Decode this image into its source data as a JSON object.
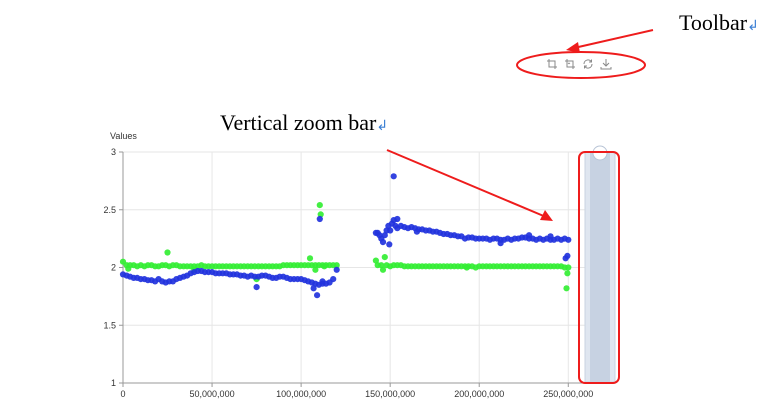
{
  "annotations": {
    "toolbar_label": "Toolbar",
    "zoom_bar_label": "Vertical zoom bar",
    "return_mark": "↲",
    "arrow_color": "#ee1c1c"
  },
  "toolbar": {
    "icons": [
      "zoom-icon",
      "zoom-reset-icon",
      "restore-icon",
      "download-icon"
    ],
    "icon_color": "#888888"
  },
  "chart_data": {
    "type": "scatter",
    "title": "",
    "xlabel": "",
    "ylabel": "Values",
    "xlim": [
      0,
      265000000
    ],
    "ylim": [
      1,
      3
    ],
    "x_ticks": [
      0,
      50000000,
      100000000,
      150000000,
      200000000,
      250000000
    ],
    "x_tick_labels": [
      "0",
      "50,000,000",
      "100,000,000",
      "150,000,000",
      "200,000,000",
      "250,000,000"
    ],
    "y_ticks": [
      1,
      1.5,
      2,
      2.5,
      3
    ],
    "y_tick_labels": [
      "1",
      "1.5",
      "2",
      "2.5",
      "3"
    ],
    "grid": true,
    "series": [
      {
        "color": "#2233dd",
        "points": [
          [
            0,
            1.94
          ],
          [
            2000000,
            1.93
          ],
          [
            4000000,
            1.92
          ],
          [
            6000000,
            1.91
          ],
          [
            8000000,
            1.91
          ],
          [
            10000000,
            1.9
          ],
          [
            12000000,
            1.9
          ],
          [
            14000000,
            1.89
          ],
          [
            16000000,
            1.89
          ],
          [
            18000000,
            1.88
          ],
          [
            20000000,
            1.9
          ],
          [
            22000000,
            1.88
          ],
          [
            24000000,
            1.87
          ],
          [
            26000000,
            1.88
          ],
          [
            28000000,
            1.88
          ],
          [
            30000000,
            1.9
          ],
          [
            32000000,
            1.91
          ],
          [
            34000000,
            1.92
          ],
          [
            36000000,
            1.93
          ],
          [
            38000000,
            1.95
          ],
          [
            40000000,
            1.96
          ],
          [
            42000000,
            1.97
          ],
          [
            44000000,
            1.97
          ],
          [
            46000000,
            1.96
          ],
          [
            48000000,
            1.96
          ],
          [
            50000000,
            1.96
          ],
          [
            52000000,
            1.95
          ],
          [
            54000000,
            1.95
          ],
          [
            56000000,
            1.95
          ],
          [
            58000000,
            1.95
          ],
          [
            60000000,
            1.94
          ],
          [
            62000000,
            1.94
          ],
          [
            64000000,
            1.94
          ],
          [
            66000000,
            1.93
          ],
          [
            68000000,
            1.93
          ],
          [
            70000000,
            1.92
          ],
          [
            72000000,
            1.93
          ],
          [
            74000000,
            1.92
          ],
          [
            76000000,
            1.92
          ],
          [
            78000000,
            1.93
          ],
          [
            80000000,
            1.93
          ],
          [
            82000000,
            1.92
          ],
          [
            84000000,
            1.91
          ],
          [
            86000000,
            1.91
          ],
          [
            88000000,
            1.92
          ],
          [
            90000000,
            1.92
          ],
          [
            92000000,
            1.91
          ],
          [
            94000000,
            1.9
          ],
          [
            96000000,
            1.9
          ],
          [
            98000000,
            1.9
          ],
          [
            100000000,
            1.9
          ],
          [
            102000000,
            1.89
          ],
          [
            104000000,
            1.88
          ],
          [
            106000000,
            1.87
          ],
          [
            108000000,
            1.86
          ],
          [
            110000000,
            1.85
          ],
          [
            112000000,
            1.86
          ],
          [
            114000000,
            1.86
          ],
          [
            116000000,
            1.87
          ],
          [
            118000000,
            1.9
          ],
          [
            120000000,
            1.98
          ],
          [
            75000000,
            1.83
          ],
          [
            107000000,
            1.82
          ],
          [
            109000000,
            1.76
          ],
          [
            110500000,
            2.42
          ],
          [
            112000000,
            1.88
          ],
          [
            142000000,
            2.3
          ],
          [
            143000000,
            2.3
          ],
          [
            144000000,
            2.28
          ],
          [
            145000000,
            2.25
          ],
          [
            146000000,
            2.22
          ],
          [
            147000000,
            2.28
          ],
          [
            148000000,
            2.32
          ],
          [
            149000000,
            2.36
          ],
          [
            150000000,
            2.32
          ],
          [
            151000000,
            2.38
          ],
          [
            152000000,
            2.41
          ],
          [
            153000000,
            2.36
          ],
          [
            154000000,
            2.34
          ],
          [
            156000000,
            2.36
          ],
          [
            158000000,
            2.35
          ],
          [
            160000000,
            2.34
          ],
          [
            162000000,
            2.35
          ],
          [
            164000000,
            2.34
          ],
          [
            166000000,
            2.33
          ],
          [
            168000000,
            2.33
          ],
          [
            170000000,
            2.32
          ],
          [
            172000000,
            2.32
          ],
          [
            174000000,
            2.31
          ],
          [
            176000000,
            2.31
          ],
          [
            178000000,
            2.3
          ],
          [
            180000000,
            2.29
          ],
          [
            182000000,
            2.29
          ],
          [
            184000000,
            2.28
          ],
          [
            186000000,
            2.28
          ],
          [
            188000000,
            2.27
          ],
          [
            190000000,
            2.27
          ],
          [
            192000000,
            2.25
          ],
          [
            194000000,
            2.26
          ],
          [
            196000000,
            2.26
          ],
          [
            198000000,
            2.25
          ],
          [
            200000000,
            2.25
          ],
          [
            202000000,
            2.25
          ],
          [
            204000000,
            2.25
          ],
          [
            206000000,
            2.24
          ],
          [
            208000000,
            2.25
          ],
          [
            210000000,
            2.25
          ],
          [
            212000000,
            2.24
          ],
          [
            214000000,
            2.24
          ],
          [
            216000000,
            2.25
          ],
          [
            218000000,
            2.24
          ],
          [
            220000000,
            2.25
          ],
          [
            222000000,
            2.25
          ],
          [
            224000000,
            2.26
          ],
          [
            226000000,
            2.26
          ],
          [
            228000000,
            2.25
          ],
          [
            230000000,
            2.25
          ],
          [
            232000000,
            2.24
          ],
          [
            234000000,
            2.25
          ],
          [
            236000000,
            2.24
          ],
          [
            238000000,
            2.25
          ],
          [
            240000000,
            2.24
          ],
          [
            242000000,
            2.24
          ],
          [
            244000000,
            2.25
          ],
          [
            246000000,
            2.24
          ],
          [
            248000000,
            2.25
          ],
          [
            250000000,
            2.24
          ],
          [
            152000000,
            2.79
          ],
          [
            149500000,
            2.2
          ],
          [
            154000000,
            2.42
          ],
          [
            212000000,
            2.21
          ],
          [
            228000000,
            2.28
          ],
          [
            240000000,
            2.27
          ],
          [
            248500000,
            2.08
          ],
          [
            249500000,
            2.1
          ],
          [
            165000000,
            2.31
          ]
        ]
      },
      {
        "color": "#33ee33",
        "points": [
          [
            0,
            2.05
          ],
          [
            2000000,
            2.02
          ],
          [
            4000000,
            2.02
          ],
          [
            6000000,
            2.02
          ],
          [
            8000000,
            2.01
          ],
          [
            10000000,
            2.02
          ],
          [
            12000000,
            2.01
          ],
          [
            14000000,
            2.02
          ],
          [
            16000000,
            2.02
          ],
          [
            18000000,
            2.01
          ],
          [
            20000000,
            2.01
          ],
          [
            22000000,
            2.02
          ],
          [
            24000000,
            2.02
          ],
          [
            26000000,
            2.01
          ],
          [
            28000000,
            2.02
          ],
          [
            30000000,
            2.02
          ],
          [
            32000000,
            2.01
          ],
          [
            34000000,
            2.01
          ],
          [
            36000000,
            2.01
          ],
          [
            38000000,
            2.01
          ],
          [
            40000000,
            2.01
          ],
          [
            42000000,
            2.01
          ],
          [
            44000000,
            2.02
          ],
          [
            46000000,
            2.01
          ],
          [
            48000000,
            2.01
          ],
          [
            50000000,
            2.01
          ],
          [
            52000000,
            2.01
          ],
          [
            54000000,
            2.01
          ],
          [
            56000000,
            2.01
          ],
          [
            58000000,
            2.01
          ],
          [
            60000000,
            2.01
          ],
          [
            62000000,
            2.01
          ],
          [
            64000000,
            2.01
          ],
          [
            66000000,
            2.01
          ],
          [
            68000000,
            2.01
          ],
          [
            70000000,
            2.01
          ],
          [
            72000000,
            2.01
          ],
          [
            74000000,
            2.01
          ],
          [
            76000000,
            2.01
          ],
          [
            78000000,
            2.01
          ],
          [
            80000000,
            2.01
          ],
          [
            82000000,
            2.01
          ],
          [
            84000000,
            2.01
          ],
          [
            86000000,
            2.01
          ],
          [
            88000000,
            2.01
          ],
          [
            90000000,
            2.02
          ],
          [
            92000000,
            2.02
          ],
          [
            94000000,
            2.02
          ],
          [
            96000000,
            2.02
          ],
          [
            98000000,
            2.02
          ],
          [
            100000000,
            2.02
          ],
          [
            102000000,
            2.02
          ],
          [
            104000000,
            2.02
          ],
          [
            106000000,
            2.02
          ],
          [
            108000000,
            2.02
          ],
          [
            110000000,
            2.02
          ],
          [
            112000000,
            2.02
          ],
          [
            114000000,
            2.02
          ],
          [
            116000000,
            2.02
          ],
          [
            118000000,
            2.02
          ],
          [
            120000000,
            2.02
          ],
          [
            25000000,
            2.13
          ],
          [
            40000000,
            1.98
          ],
          [
            75000000,
            1.9
          ],
          [
            105000000,
            2.08
          ],
          [
            110500000,
            2.54
          ],
          [
            111000000,
            2.46
          ],
          [
            3000000,
            1.99
          ],
          [
            108000000,
            1.98
          ],
          [
            113000000,
            2.01
          ],
          [
            142000000,
            2.06
          ],
          [
            143000000,
            2.02
          ],
          [
            145000000,
            2.02
          ],
          [
            146000000,
            1.98
          ],
          [
            148000000,
            2.02
          ],
          [
            150000000,
            2.01
          ],
          [
            152000000,
            2.02
          ],
          [
            154000000,
            2.02
          ],
          [
            156000000,
            2.02
          ],
          [
            158000000,
            2.01
          ],
          [
            160000000,
            2.01
          ],
          [
            162000000,
            2.01
          ],
          [
            164000000,
            2.01
          ],
          [
            166000000,
            2.01
          ],
          [
            168000000,
            2.01
          ],
          [
            170000000,
            2.01
          ],
          [
            172000000,
            2.01
          ],
          [
            174000000,
            2.01
          ],
          [
            176000000,
            2.01
          ],
          [
            178000000,
            2.01
          ],
          [
            180000000,
            2.01
          ],
          [
            182000000,
            2.01
          ],
          [
            184000000,
            2.01
          ],
          [
            186000000,
            2.01
          ],
          [
            188000000,
            2.01
          ],
          [
            190000000,
            2.01
          ],
          [
            192000000,
            2.01
          ],
          [
            194000000,
            2.01
          ],
          [
            196000000,
            2.01
          ],
          [
            198000000,
            2.0
          ],
          [
            200000000,
            2.01
          ],
          [
            202000000,
            2.01
          ],
          [
            204000000,
            2.01
          ],
          [
            206000000,
            2.01
          ],
          [
            208000000,
            2.01
          ],
          [
            210000000,
            2.01
          ],
          [
            212000000,
            2.01
          ],
          [
            214000000,
            2.01
          ],
          [
            216000000,
            2.01
          ],
          [
            218000000,
            2.01
          ],
          [
            220000000,
            2.01
          ],
          [
            222000000,
            2.01
          ],
          [
            224000000,
            2.01
          ],
          [
            226000000,
            2.01
          ],
          [
            228000000,
            2.01
          ],
          [
            230000000,
            2.01
          ],
          [
            232000000,
            2.01
          ],
          [
            234000000,
            2.01
          ],
          [
            236000000,
            2.01
          ],
          [
            238000000,
            2.01
          ],
          [
            240000000,
            2.01
          ],
          [
            242000000,
            2.01
          ],
          [
            244000000,
            2.01
          ],
          [
            246000000,
            2.01
          ],
          [
            248000000,
            2.0
          ],
          [
            250000000,
            2.0
          ],
          [
            147000000,
            2.09
          ],
          [
            193000000,
            2.0
          ],
          [
            249000000,
            1.82
          ],
          [
            249500000,
            1.95
          ]
        ]
      }
    ]
  }
}
